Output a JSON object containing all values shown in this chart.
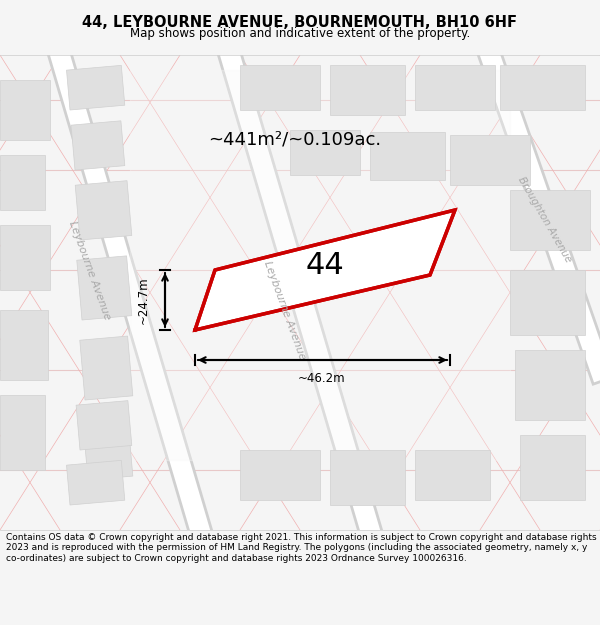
{
  "title": "44, LEYBOURNE AVENUE, BOURNEMOUTH, BH10 6HF",
  "subtitle": "Map shows position and indicative extent of the property.",
  "footer": "Contains OS data © Crown copyright and database right 2021. This information is subject to Crown copyright and database rights 2023 and is reproduced with the permission of HM Land Registry. The polygons (including the associated geometry, namely x, y co-ordinates) are subject to Crown copyright and database rights 2023 Ordnance Survey 100026316.",
  "area_text": "~441m²/~0.109ac.",
  "width_label": "~46.2m",
  "height_label": "~24.7m",
  "plot_number": "44",
  "bg_color": "#f5f5f5",
  "map_bg": "#ffffff",
  "road_color": "#ffffff",
  "block_color": "#e0e0e0",
  "plot_outline_color": "#cc0000",
  "grid_line_color": "#f0b0b0",
  "street_label1": "Leybourne Avenue",
  "street_label2": "Leybourne Avenue",
  "street_label3": "Broughton Avenue"
}
